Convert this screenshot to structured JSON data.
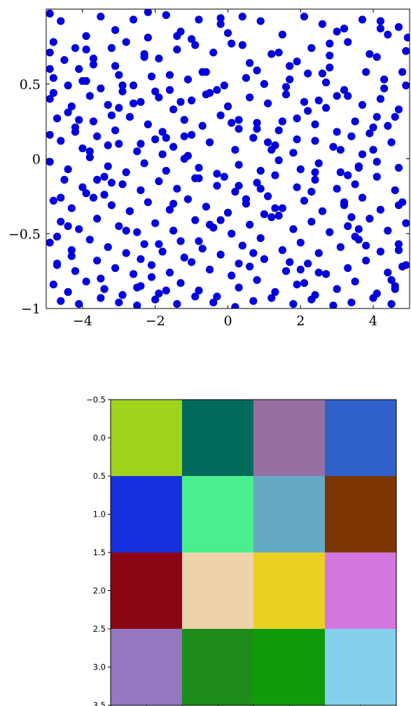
{
  "chart_data": [
    {
      "type": "scatter",
      "title": "",
      "xlabel": "",
      "ylabel": "",
      "xlim": [
        -5,
        5
      ],
      "ylim": [
        -1,
        1
      ],
      "grid": false,
      "marker_color": "#0000dd",
      "xticks": [
        -4,
        -2,
        0,
        2,
        4
      ],
      "xtick_labels": [
        "−4",
        "−2",
        "0",
        "2",
        "4"
      ],
      "yticks": [
        -1,
        -0.5,
        0,
        0.5
      ],
      "ytick_labels": [
        "−1",
        "−0.5",
        "0",
        "0.5"
      ],
      "x": [
        -4.9,
        -4.6,
        -4.8,
        -4.2,
        -3.9,
        -3.5,
        -3.1,
        -2.6,
        -2.2,
        -1.7,
        -1.3,
        -0.8,
        -0.2,
        0.4,
        0.9,
        1.5,
        2.1,
        2.6,
        3.2,
        3.7,
        4.2,
        4.7,
        4.95,
        -4.9,
        -4.5,
        -4.1,
        -3.7,
        -3.2,
        -2.8,
        -2.3,
        -1.9,
        -1.4,
        -0.9,
        -0.4,
        0.1,
        0.6,
        1.2,
        1.7,
        2.3,
        2.8,
        3.3,
        3.9,
        4.4,
        4.8,
        -4.8,
        -4.4,
        -3.9,
        -3.5,
        -3.0,
        -2.6,
        -2.1,
        -1.6,
        -1.1,
        -0.6,
        -0.1,
        0.5,
        1.0,
        1.6,
        2.2,
        2.7,
        3.2,
        3.8,
        4.3,
        4.9,
        -4.9,
        -4.3,
        -3.8,
        -3.3,
        -2.9,
        -2.4,
        -1.9,
        -1.5,
        -1.0,
        -0.5,
        0.0,
        0.6,
        1.1,
        1.6,
        2.1,
        2.7,
        3.3,
        3.7,
        4.2,
        4.7,
        -4.7,
        -4.2,
        -3.7,
        -3.1,
        -2.7,
        -2.2,
        -1.8,
        -1.2,
        -0.7,
        -0.2,
        0.3,
        0.8,
        1.4,
        1.9,
        2.4,
        3.0,
        3.5,
        4.0,
        4.6,
        -4.6,
        -4.0,
        -3.6,
        -3.0,
        -2.5,
        -2.0,
        -1.5,
        -1.0,
        -0.5,
        0.2,
        0.7,
        1.3,
        1.8,
        2.4,
        2.9,
        3.4,
        4.0,
        4.5,
        -4.9,
        -4.4,
        -3.8,
        -3.3,
        -2.8,
        -2.3,
        -1.7,
        -1.2,
        -0.8,
        -0.3,
        0.3,
        0.9,
        1.4,
        2.0,
        2.5,
        3.1,
        3.6,
        4.1,
        4.7,
        -4.5,
        -4.0,
        -3.4,
        -2.9,
        -2.4,
        -1.9,
        -1.4,
        -0.9,
        -0.3,
        0.2,
        0.8,
        1.3,
        1.9,
        2.4,
        3.0,
        3.5,
        4.1,
        4.6,
        -4.8,
        -4.3,
        -3.7,
        -3.2,
        -2.7,
        -2.2,
        -1.6,
        -1.1,
        -0.6,
        0.0,
        0.5,
        1.1,
        1.5,
        2.1,
        2.6,
        3.2,
        3.7,
        4.2,
        4.8,
        -4.6,
        -4.1,
        -3.6,
        -3.0,
        -2.5,
        -2.0,
        -1.5,
        -0.9,
        -0.4,
        0.1,
        0.6,
        1.2,
        1.8,
        2.3,
        2.8,
        3.3,
        3.9,
        4.4,
        4.9,
        -4.9,
        -4.3,
        -3.8,
        -3.3,
        -2.8,
        -2.3,
        -1.8,
        -1.3,
        -0.7,
        -0.2,
        0.4,
        0.9,
        1.5,
        2.0,
        2.5,
        3.1,
        3.6,
        4.2,
        4.7,
        -4.7,
        -4.2,
        -3.6,
        -3.1,
        -2.6,
        -2.1,
        -1.6,
        -1.0,
        -0.5,
        0.1,
        0.6,
        1.0,
        1.6,
        2.2,
        2.7,
        3.3,
        3.8,
        4.4,
        4.9,
        -4.8,
        -4.4,
        -3.9,
        -3.4,
        -2.9,
        -2.4,
        -1.9,
        -1.3,
        -0.8,
        -0.3,
        0.3,
        0.8,
        1.3,
        1.9,
        2.4,
        3.0,
        3.5,
        4.1,
        4.6,
        -4.6,
        -4.1,
        -3.5,
        -3.0,
        -2.5,
        -2.0,
        -1.4,
        -0.9,
        -0.4,
        0.2,
        0.7,
        1.2,
        1.8,
        2.3,
        2.9,
        3.4,
        4.0,
        4.5,
        -4.9,
        -4.4,
        -3.9,
        -3.3,
        -2.8,
        -2.3,
        -1.7,
        -1.2,
        -0.6,
        -0.1,
        0.4,
        1.0,
        1.5,
        2.1,
        2.6,
        3.2,
        3.7,
        4.3,
        4.8,
        -4.7,
        -4.2,
        -3.7,
        -3.2,
        -2.6,
        -2.1,
        -1.6,
        -1.1,
        -0.5,
        0.0,
        0.5,
        1.1,
        1.7,
        2.2,
        2.8,
        3.3,
        3.8,
        4.4,
        4.9,
        -4.8,
        -4.3,
        -3.8,
        -3.2,
        -2.7,
        -2.2,
        -1.7,
        -1.2,
        -0.7,
        -0.2,
        0.3,
        0.9,
        1.4,
        2.0,
        2.5,
        3.1,
        3.6,
        4.2,
        4.7,
        -4.6,
        -4.0,
        -3.5,
        -3.0,
        -2.4,
        -1.9,
        -1.4,
        -0.8,
        -0.3,
        0.3,
        0.8,
        1.4,
        1.9,
        2.4,
        3.0,
        3.5,
        4.1,
        4.6,
        -4.9,
        -4.4,
        -3.9,
        -3.4,
        -2.9,
        -2.4,
        -1.8,
        -1.3,
        -0.8,
        -0.2,
        0.3,
        0.8,
        1.3,
        1.9,
        2.5,
        3.0,
        3.6,
        4.1,
        4.7,
        -4.7,
        -4.1,
        -3.6,
        -3.1,
        -2.5,
        -2.0,
        -1.5,
        -1.0,
        -0.4,
        0.1,
        0.7,
        1.2,
        1.7,
        2.3,
        2.8,
        3.4,
        3.9,
        4.5
      ],
      "y": [
        0.97,
        0.92,
        0.78,
        0.74,
        0.82,
        0.95,
        0.86,
        0.93,
        0.98,
        0.96,
        0.85,
        0.93,
        0.94,
        0.95,
        0.92,
        0.83,
        0.95,
        0.9,
        0.87,
        0.93,
        0.92,
        0.88,
        0.81,
        0.71,
        0.66,
        0.6,
        0.63,
        0.74,
        0.78,
        0.7,
        0.67,
        0.82,
        0.76,
        0.71,
        0.77,
        0.64,
        0.7,
        0.62,
        0.74,
        0.69,
        0.78,
        0.7,
        0.83,
        0.58,
        0.54,
        0.49,
        0.52,
        0.47,
        0.56,
        0.49,
        0.55,
        0.46,
        0.53,
        0.58,
        0.49,
        0.54,
        0.5,
        0.48,
        0.57,
        0.51,
        0.46,
        0.58,
        0.53,
        0.49,
        0.4,
        0.35,
        0.42,
        0.36,
        0.45,
        0.38,
        0.41,
        0.33,
        0.39,
        0.44,
        0.35,
        0.41,
        0.37,
        0.43,
        0.38,
        0.34,
        0.42,
        0.36,
        0.4,
        0.33,
        0.27,
        0.21,
        0.25,
        0.19,
        0.28,
        0.23,
        0.18,
        0.26,
        0.22,
        0.29,
        0.2,
        0.24,
        0.19,
        0.27,
        0.23,
        0.18,
        0.25,
        0.21,
        0.28,
        0.12,
        0.07,
        0.15,
        0.1,
        0.05,
        0.13,
        0.08,
        0.16,
        0.11,
        0.06,
        0.14,
        0.09,
        0.04,
        0.12,
        0.08,
        0.15,
        0.06,
        0.11,
        -0.02,
        -0.07,
        0.01,
        -0.05,
        -0.09,
        -0.03,
        -0.08,
        0.0,
        -0.06,
        -0.1,
        -0.04,
        -0.08,
        -0.01,
        -0.07,
        -0.03,
        -0.09,
        -0.05,
        -0.02,
        -0.06,
        -0.14,
        -0.19,
        -0.12,
        -0.17,
        -0.21,
        -0.15,
        -0.2,
        -0.13,
        -0.18,
        -0.22,
        -0.16,
        -0.11,
        -0.19,
        -0.14,
        -0.2,
        -0.17,
        -0.12,
        -0.21,
        -0.28,
        -0.33,
        -0.26,
        -0.31,
        -0.35,
        -0.29,
        -0.34,
        -0.27,
        -0.32,
        -0.36,
        -0.3,
        -0.25,
        -0.33,
        -0.28,
        -0.35,
        -0.31,
        -0.26,
        -0.34,
        -0.29,
        -0.42,
        -0.47,
        -0.4,
        -0.45,
        -0.49,
        -0.43,
        -0.48,
        -0.41,
        -0.46,
        -0.5,
        -0.44,
        -0.39,
        -0.47,
        -0.42,
        -0.49,
        -0.45,
        -0.4,
        -0.48,
        -0.43,
        -0.56,
        -0.61,
        -0.54,
        -0.59,
        -0.63,
        -0.57,
        -0.62,
        -0.55,
        -0.6,
        -0.64,
        -0.58,
        -0.53,
        -0.61,
        -0.56,
        -0.63,
        -0.59,
        -0.54,
        -0.62,
        -0.57,
        -0.7,
        -0.75,
        -0.68,
        -0.73,
        -0.77,
        -0.71,
        -0.76,
        -0.69,
        -0.74,
        -0.78,
        -0.72,
        -0.67,
        -0.75,
        -0.7,
        -0.77,
        -0.73,
        -0.68,
        -0.76,
        -0.71,
        -0.84,
        -0.89,
        -0.82,
        -0.87,
        -0.91,
        -0.85,
        -0.9,
        -0.83,
        -0.88,
        -0.92,
        -0.86,
        -0.81,
        -0.89,
        -0.84,
        -0.91,
        -0.87,
        -0.82,
        -0.9,
        -0.85,
        -0.95,
        -0.97,
        -0.93,
        -0.96,
        -0.98,
        -0.94,
        -0.97,
        -0.92,
        -0.96,
        -0.99,
        -0.95,
        -0.93,
        -0.97,
        -0.94,
        -0.98,
        -0.96,
        -0.93,
        -0.97,
        0.6,
        0.31,
        -0.23,
        0.09,
        -0.48,
        0.68,
        0.14,
        -0.66,
        0.43,
        -0.12,
        0.76,
        -0.37,
        0.25,
        -0.83,
        0.57,
        -0.29,
        0.03,
        0.47,
        -0.72,
        -0.52,
        0.18,
        0.67,
        -0.16,
        0.37,
        -0.79,
        0.56,
        0.02,
        -0.44,
        0.84,
        -0.27,
        0.11,
        -0.69,
        0.32,
        0.61,
        -0.11,
        -0.58,
        0.22,
        0.72,
        0.44,
        -0.65,
        0.05,
        0.29,
        -0.35,
        0.81,
        -0.88,
        0.15,
        0.58,
        -0.41,
        0.26,
        -0.2,
        0.71,
        -0.74,
        0.39,
        0.06,
        -0.47,
        0.87,
        -0.31,
        -0.26,
        0.52,
        -0.8,
        0.34,
        0.1,
        -0.57,
        0.73,
        -0.13,
        0.46,
        -0.7,
        0.2,
        -0.38,
        0.65,
        -0.09,
        0.85,
        -0.52,
        0.28,
        -0.87,
        0.16,
        -0.45,
        0.73,
        -0.24,
        0.49,
        -0.67,
        0.03,
        0.38,
        -0.55,
        0.9,
        -0.18,
        0.59,
        -0.33,
        0.13,
        -0.76,
        0.42,
        -0.06,
        0.68,
        -0.61,
        -0.71,
        0.26,
        -0.14,
        0.62,
        -0.86,
        0.45,
        -0.3,
        0.8,
        -0.46,
        0.24,
        -0.63,
        0.06,
        0.53,
        -0.22,
        0.77,
        -0.39,
        0.17,
        -0.81
      ]
    },
    {
      "type": "heatmap",
      "title": "",
      "xlabel": "",
      "ylabel": "",
      "xlim": [
        -0.5,
        3.5
      ],
      "ylim": [
        3.5,
        -0.5
      ],
      "xticks": [
        -0.5,
        0.0,
        0.5,
        1.0,
        1.5,
        2.0,
        2.5,
        3.0,
        3.5
      ],
      "xtick_labels": [
        "−0.5",
        "0.0",
        "0.5",
        "1.0",
        "1.5",
        "2.0",
        "2.5",
        "3.0",
        "3.5"
      ],
      "yticks": [
        -0.5,
        0.0,
        0.5,
        1.0,
        1.5,
        2.0,
        2.5,
        3.0,
        3.5
      ],
      "ytick_labels": [
        "−0.5",
        "0.0",
        "0.5",
        "1.0",
        "1.5",
        "2.0",
        "2.5",
        "3.0",
        "3.5"
      ],
      "cells": [
        [
          "#9fd41c",
          "#006b5c",
          "#9670a3",
          "#3161cb"
        ],
        [
          "#182fe0",
          "#4aef8d",
          "#64aac4",
          "#7d3502"
        ],
        [
          "#8c0715",
          "#edd2ab",
          "#ebd024",
          "#d476e0"
        ],
        [
          "#9577c2",
          "#1e8c1a",
          "#0f9b0a",
          "#84d0ec"
        ]
      ]
    }
  ]
}
